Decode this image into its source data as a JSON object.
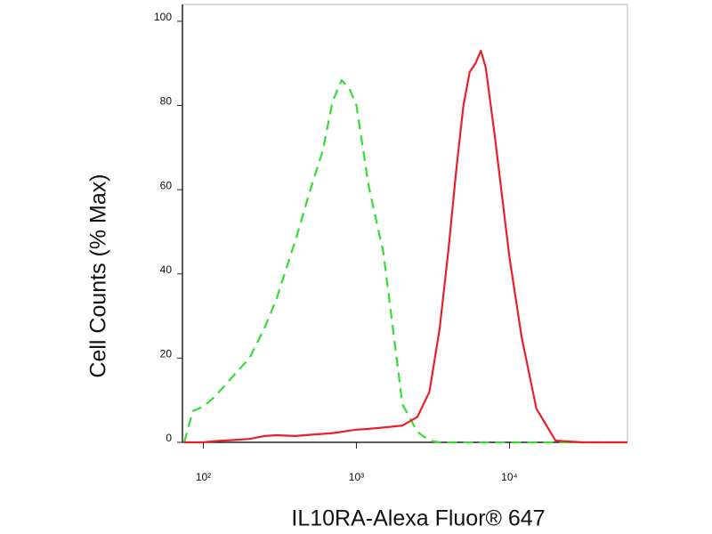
{
  "chart_data": {
    "type": "line",
    "xlabel": "IL10RA-Alexa Fluor® 647",
    "ylabel": "Cell Counts (% Max)",
    "x": [
      75,
      85,
      100,
      120,
      150,
      200,
      250,
      300,
      400,
      500,
      600,
      700,
      800,
      900,
      1000,
      1200,
      1500,
      2000,
      2500,
      3000,
      3500,
      4000,
      4500,
      5000,
      5500,
      6000,
      6500,
      7000,
      8000,
      10000,
      12000,
      15000,
      20000,
      30000,
      59000
    ],
    "series": [
      {
        "color": "#33dd33",
        "dash": true,
        "values": [
          0,
          7.4,
          8.5,
          11,
          15,
          20,
          27,
          34,
          48,
          60,
          69,
          81,
          86,
          84,
          80,
          61,
          45,
          9,
          2.5,
          0.4,
          0,
          0,
          0,
          0,
          0,
          0,
          0,
          0,
          0,
          0,
          0,
          0,
          0,
          0,
          0
        ]
      },
      {
        "color": "#e8202a",
        "dash": false,
        "values": [
          0,
          0,
          0,
          0.3,
          0.5,
          0.8,
          1.5,
          1.7,
          1.5,
          1.8,
          2,
          2.2,
          2.5,
          2.8,
          3,
          3.2,
          3.5,
          4,
          6,
          12,
          27,
          46,
          65,
          80,
          88,
          90,
          93,
          89,
          73,
          44,
          25,
          8,
          0.4,
          0,
          0
        ]
      }
    ],
    "xscale": "log",
    "xlim": [
      73,
      59000
    ],
    "xticks": [
      {
        "value": 100,
        "label": "10²"
      },
      {
        "value": 1000,
        "label": "10³"
      },
      {
        "value": 10000,
        "label": "10⁴"
      }
    ],
    "ylim": [
      0,
      104
    ],
    "yticks": [
      0,
      20,
      40,
      60,
      80,
      100
    ]
  }
}
